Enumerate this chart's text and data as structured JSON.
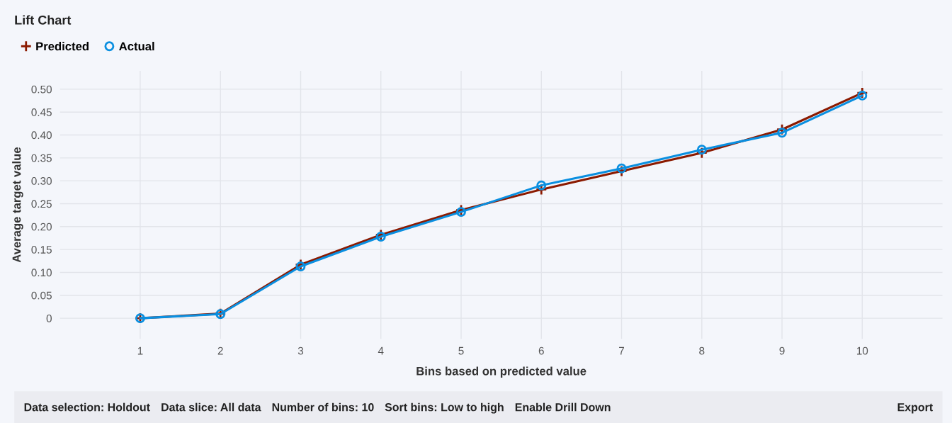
{
  "chart_data": {
    "type": "line",
    "title": "Lift Chart",
    "xlabel": "Bins based on predicted value",
    "ylabel": "Average target value",
    "x": [
      1,
      2,
      3,
      4,
      5,
      6,
      7,
      8,
      9,
      10
    ],
    "series": [
      {
        "name": "Predicted",
        "color": "#8b1a00",
        "marker": "cross",
        "values": [
          0,
          0.01,
          0.117,
          0.182,
          0.236,
          0.281,
          0.321,
          0.361,
          0.412,
          0.492
        ]
      },
      {
        "name": "Actual",
        "color": "#0a8fe0",
        "marker": "circle",
        "values": [
          0,
          0.009,
          0.113,
          0.178,
          0.232,
          0.29,
          0.327,
          0.368,
          0.405,
          0.486
        ]
      }
    ],
    "xlim": [
      0,
      11
    ],
    "xticks": [
      1,
      2,
      3,
      4,
      5,
      6,
      7,
      8,
      9,
      10
    ],
    "ylim": [
      -0.045,
      0.54
    ],
    "yticks": [
      0,
      {
        "value": 0.05,
        "label": "0.05"
      },
      {
        "value": 0.1,
        "label": "0.10"
      },
      {
        "value": 0.15,
        "label": "0.15"
      },
      {
        "value": 0.2,
        "label": "0.20"
      },
      {
        "value": 0.25,
        "label": "0.25"
      },
      {
        "value": 0.3,
        "label": "0.30"
      },
      {
        "value": 0.35,
        "label": "0.35"
      },
      {
        "value": 0.4,
        "label": "0.40"
      },
      {
        "value": 0.45,
        "label": "0.45"
      },
      {
        "value": 0.5,
        "label": "0.50"
      }
    ],
    "grid": true,
    "legend": "top left",
    "line_style": "solid",
    "annotations": [
      "Data selection: Holdout",
      "Data slice: All data",
      "Number of bins: 10",
      "Sort bins: Low to high",
      "Enable Drill Down",
      "Export"
    ]
  }
}
